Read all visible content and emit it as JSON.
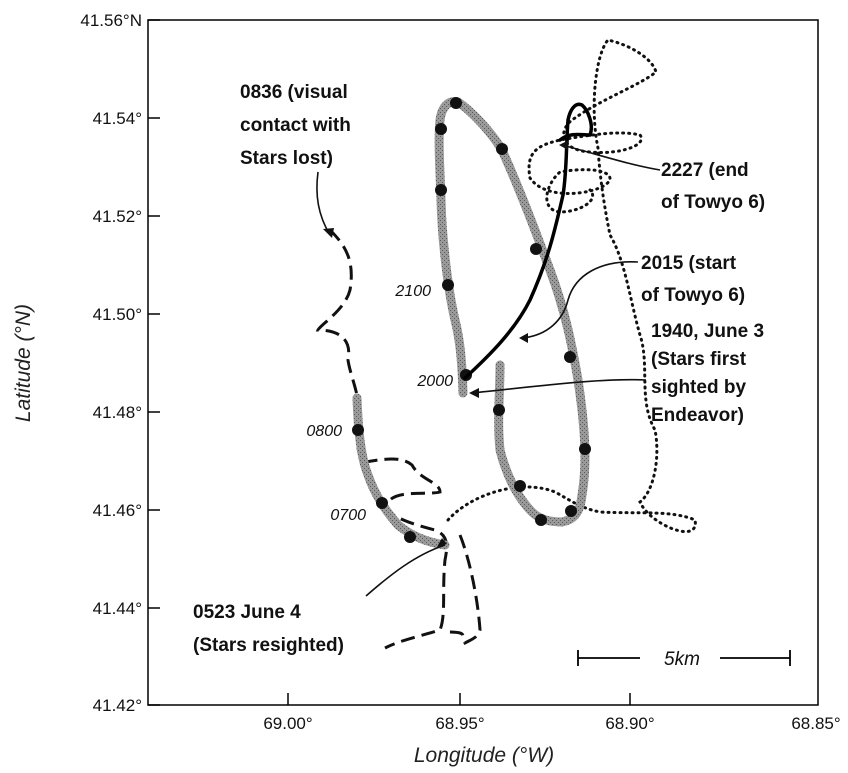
{
  "map": {
    "xlabel": "Longitude (°W)",
    "ylabel": "Latitude (°N)",
    "x_ticks": [
      "69.00°",
      "68.95°",
      "68.90°",
      "68.85°"
    ],
    "y_ticks": [
      "41.56°N",
      "41.54°",
      "41.52°",
      "41.50°",
      "41.48°",
      "41.46°",
      "41.44°",
      "41.42°"
    ],
    "scale_bar": "5km",
    "time_labels": [
      "2100",
      "2000",
      "0800",
      "0700"
    ],
    "annotations": {
      "visual_contact": [
        "0836 (visual",
        "contact with",
        "Stars lost)"
      ],
      "end_towyo": [
        "2227 (end",
        "of Towyo 6)"
      ],
      "start_towyo": [
        "2015 (start",
        "of Towyo 6)"
      ],
      "first_sighted": [
        "1940, June 3",
        "(Stars first",
        "sighted by",
        "Endeavor)"
      ],
      "resighted": [
        "0523 June 4",
        "(Stars resighted)"
      ]
    }
  },
  "chart_data": {
    "type": "map",
    "x_axis": {
      "label": "Longitude (°W)",
      "range": [
        69.035,
        68.85
      ],
      "ticks": [
        69.0,
        68.95,
        68.9,
        68.85
      ]
    },
    "y_axis": {
      "label": "Latitude (°N)",
      "range": [
        41.42,
        41.56
      ],
      "ticks": [
        41.42,
        41.44,
        41.46,
        41.48,
        41.5,
        41.52,
        41.54,
        41.56
      ]
    },
    "tracks": [
      {
        "style": "thick gray with black dots",
        "points": [
          [
            68.945,
            41.485
          ],
          [
            68.945,
            41.5
          ],
          [
            68.948,
            41.52
          ],
          [
            68.952,
            41.535
          ],
          [
            68.95,
            41.542
          ],
          [
            68.946,
            41.543
          ],
          [
            68.94,
            41.533
          ],
          [
            68.932,
            41.513
          ],
          [
            68.925,
            41.49
          ],
          [
            68.92,
            41.472
          ],
          [
            68.922,
            41.46
          ],
          [
            68.928,
            41.458
          ],
          [
            68.935,
            41.465
          ],
          [
            68.94,
            41.48
          ],
          [
            68.94,
            41.49
          ]
        ]
      },
      {
        "style": "thick gray (lower left segment)",
        "points": [
          [
            68.98,
            41.483
          ],
          [
            68.978,
            41.47
          ],
          [
            68.975,
            41.461
          ],
          [
            68.968,
            41.455
          ],
          [
            68.955,
            41.453
          ]
        ]
      },
      {
        "style": "solid black",
        "points": [
          [
            68.945,
            41.488
          ],
          [
            68.928,
            41.515
          ],
          [
            68.923,
            41.53
          ],
          [
            68.922,
            41.54
          ],
          [
            68.918,
            41.533
          ]
        ]
      },
      {
        "style": "dashed black",
        "points": [
          [
            68.97,
            41.515
          ],
          [
            68.98,
            41.497
          ],
          [
            68.982,
            41.478
          ],
          [
            68.975,
            41.465
          ],
          [
            68.962,
            41.468
          ],
          [
            68.955,
            41.456
          ],
          [
            68.948,
            41.445
          ],
          [
            68.948,
            41.43
          ],
          [
            68.958,
            41.432
          ]
        ]
      },
      {
        "style": "dotted black",
        "points": [
          [
            68.95,
            41.456
          ],
          [
            68.935,
            41.466
          ],
          [
            68.92,
            41.462
          ],
          [
            68.89,
            41.458
          ],
          [
            68.893,
            41.48
          ],
          [
            68.9,
            41.51
          ],
          [
            68.91,
            41.54
          ],
          [
            68.9,
            41.552
          ],
          [
            68.92,
            41.545
          ]
        ]
      }
    ],
    "time_labels": [
      {
        "text": "2100",
        "lon": 68.956,
        "lat": 41.505
      },
      {
        "text": "2000",
        "lon": 68.952,
        "lat": 41.488
      },
      {
        "text": "0800",
        "lon": 68.985,
        "lat": 41.476
      },
      {
        "text": "0700",
        "lon": 68.97,
        "lat": 41.458
      }
    ],
    "scale_bar": {
      "label": "5km",
      "lon_start": 68.917,
      "lon_end": 68.857,
      "lat": 41.431
    }
  }
}
